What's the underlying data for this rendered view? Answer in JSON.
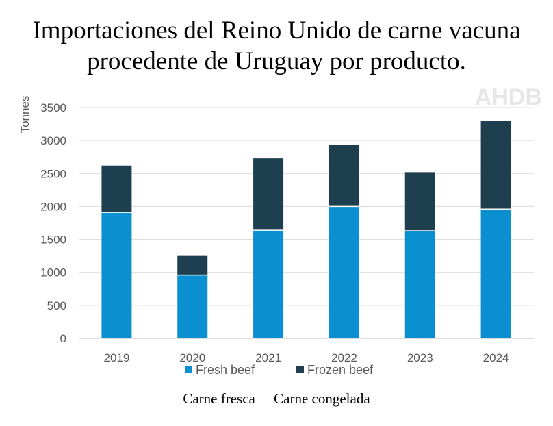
{
  "title_line1": "Importaciones del Reino Unido de carne vacuna",
  "title_line2": "procedente de Uruguay por producto.",
  "logo_text": "AHDB",
  "caption": {
    "fresh": "Carne fresca",
    "frozen": "Carne congelada"
  },
  "colors": {
    "fresh": "#0a8fd1",
    "frozen": "#1e3f50",
    "grid": "#d9d9d9",
    "axis_text": "#595959"
  },
  "chart_data": {
    "type": "bar",
    "stacked": true,
    "title": "Importaciones del Reino Unido de carne vacuna procedente de Uruguay por producto.",
    "xlabel": "",
    "ylabel": "Tonnes",
    "ylim": [
      0,
      3500
    ],
    "yticks": [
      0,
      500,
      1000,
      1500,
      2000,
      2500,
      3000,
      3500
    ],
    "grid": true,
    "legend_position": "bottom",
    "categories": [
      "2019",
      "2020",
      "2021",
      "2022",
      "2023",
      "2024"
    ],
    "series": [
      {
        "name": "Fresh beef",
        "color": "#0a8fd1",
        "values": [
          1910,
          960,
          1640,
          2000,
          1630,
          1960
        ]
      },
      {
        "name": "Frozen beef",
        "color": "#1e3f50",
        "values": [
          710,
          290,
          1090,
          935,
          890,
          1340
        ]
      }
    ]
  }
}
